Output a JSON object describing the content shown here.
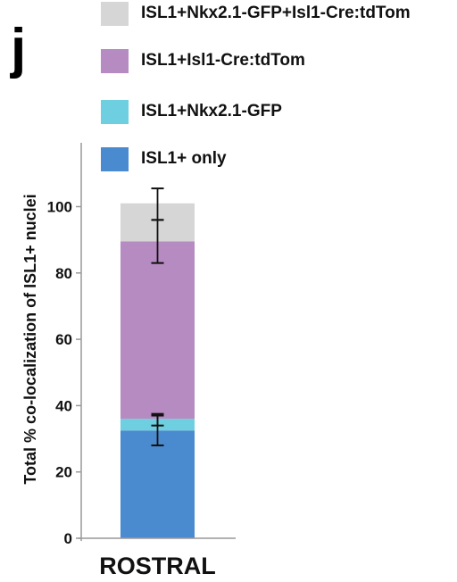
{
  "panel_letter": "j",
  "chart_data": {
    "type": "bar",
    "stacked": true,
    "categories": [
      "ROSTRAL"
    ],
    "ylabel": "Total % co-localization of ISL1+ nuclei",
    "ylim": [
      0,
      120
    ],
    "yticks": [
      0,
      20,
      40,
      60,
      80,
      100
    ],
    "legend_position": "top",
    "series": [
      {
        "name": "ISL1+ only",
        "color": "#4a8acf",
        "values": [
          32.5
        ]
      },
      {
        "name": "ISL1+Nkx2.1-GFP",
        "color": "#6dcfdf",
        "values": [
          3.5
        ]
      },
      {
        "name": "ISL1+Isl1-Cre:tdTom",
        "color": "#b58bc1",
        "values": [
          53.5
        ]
      },
      {
        "name": "ISL1+Nkx2.1-GFP+Isl1-Cre:tdTom",
        "color": "#d6d6d6",
        "values": [
          11.5
        ]
      }
    ],
    "error_bars": [
      {
        "center": 32.5,
        "low": 28,
        "high": 37.5
      },
      {
        "center": 36,
        "low": 34,
        "high": 37
      },
      {
        "center": 89.5,
        "low": 83,
        "high": 96
      },
      {
        "center": 101,
        "low": 96,
        "high": 105.5
      }
    ]
  }
}
